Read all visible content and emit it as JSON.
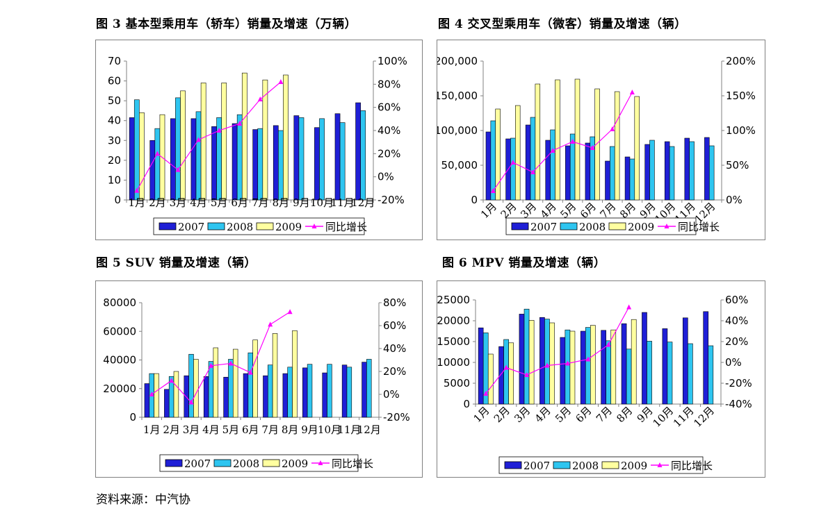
{
  "titles": {
    "fig3": "图 3 基本型乘用车（轿车）销量及增速（万辆）",
    "fig4": "图 4 交叉型乘用车（微客）销量及增速（辆）",
    "fig5": "图 5  SUV 销量及增速（辆）",
    "fig6": "图 6 MPV 销量及增速（辆）"
  },
  "source": "资料来源：中汽协",
  "colors": {
    "s2007": "#1f1fd6",
    "s2008": "#2ec5f0",
    "s2009": "#ffffa0",
    "growth": "#ff00ff",
    "border": "#000000"
  },
  "chart_data": [
    {
      "id": "fig3",
      "type": "bar",
      "categories": [
        "1月",
        "2月",
        "3月",
        "4月",
        "5月",
        "6月",
        "7月",
        "8月",
        "9月",
        "10月",
        "11月",
        "12月"
      ],
      "category_label_rotated": false,
      "series": [
        {
          "name": "2007",
          "values": [
            41.5,
            30,
            41,
            41,
            37,
            38.5,
            35.5,
            37.5,
            42.5,
            36.5,
            43.5,
            49
          ]
        },
        {
          "name": "2008",
          "values": [
            50.5,
            36,
            51.5,
            44.5,
            41.5,
            43,
            36,
            35,
            41.5,
            41,
            39,
            45
          ]
        },
        {
          "name": "2009",
          "values": [
            44,
            43,
            55,
            59,
            59,
            64,
            60.5,
            63,
            null,
            null,
            null,
            null
          ]
        }
      ],
      "line_series": {
        "name": "同比增长",
        "values": [
          -12,
          20,
          6,
          32,
          40,
          46,
          67,
          82,
          null,
          null,
          null,
          null
        ]
      },
      "left_axis": {
        "min": 0,
        "max": 70,
        "ticks": [
          0,
          10,
          20,
          30,
          40,
          50,
          60,
          70
        ],
        "labels": [
          "0",
          "10",
          "20",
          "30",
          "40",
          "50",
          "60",
          "70"
        ]
      },
      "right_axis": {
        "min": -20,
        "max": 100,
        "ticks": [
          -20,
          0,
          20,
          40,
          60,
          80,
          100
        ],
        "labels": [
          "-20%",
          "0%",
          "20%",
          "40%",
          "60%",
          "80%",
          "100%"
        ]
      },
      "legend": [
        "2007",
        "2008",
        "2009",
        "同比增长"
      ],
      "legend_position": "bottom"
    },
    {
      "id": "fig4",
      "type": "bar",
      "categories": [
        "1月",
        "2月",
        "3月",
        "4月",
        "5月",
        "6月",
        "7月",
        "8月",
        "9月",
        "10月",
        "11月",
        "12月"
      ],
      "category_label_rotated": true,
      "series": [
        {
          "name": "2007",
          "values": [
            98000,
            88000,
            108000,
            86000,
            78000,
            82000,
            56000,
            62000,
            80000,
            84000,
            89000,
            90000
          ]
        },
        {
          "name": "2008",
          "values": [
            114000,
            89000,
            119000,
            101000,
            95000,
            91000,
            77000,
            59000,
            86000,
            77000,
            84000,
            78000
          ]
        },
        {
          "name": "2009",
          "values": [
            131000,
            136000,
            167000,
            173000,
            174000,
            160000,
            156000,
            149000,
            null,
            null,
            null,
            null
          ]
        }
      ],
      "line_series": {
        "name": "同比增长",
        "values": [
          13,
          54,
          40,
          71,
          84,
          75,
          102,
          155,
          null,
          null,
          null,
          null
        ]
      },
      "left_axis": {
        "min": 0,
        "max": 200000,
        "ticks": [
          0,
          50000,
          100000,
          150000,
          200000
        ],
        "labels": [
          "0",
          "50,000",
          "100,000",
          "150,000",
          "200,000"
        ]
      },
      "right_axis": {
        "min": 0,
        "max": 200,
        "ticks": [
          0,
          50,
          100,
          150,
          200
        ],
        "labels": [
          "0%",
          "50%",
          "100%",
          "150%",
          "200%"
        ]
      },
      "legend": [
        "2007",
        "2008",
        "2009",
        "同比增长"
      ],
      "legend_position": "bottom"
    },
    {
      "id": "fig5",
      "type": "bar",
      "categories": [
        "1月",
        "2月",
        "3月",
        "4月",
        "5月",
        "6月",
        "7月",
        "8月",
        "9月",
        "10月",
        "11月",
        "12月"
      ],
      "category_label_rotated": false,
      "series": [
        {
          "name": "2007",
          "values": [
            23500,
            19500,
            29000,
            28500,
            28000,
            30500,
            29000,
            30500,
            34500,
            31000,
            36500,
            38500
          ]
        },
        {
          "name": "2008",
          "values": [
            30500,
            28500,
            44000,
            39000,
            40500,
            45000,
            36500,
            35000,
            37000,
            37000,
            35000,
            40500
          ]
        },
        {
          "name": "2009",
          "values": [
            30500,
            32000,
            40500,
            48500,
            47500,
            54000,
            58500,
            60500,
            null,
            null,
            null,
            null
          ]
        }
      ],
      "line_series": {
        "name": "同比增长",
        "values": [
          0,
          12,
          -7,
          25,
          27,
          19,
          61,
          72,
          null,
          null,
          null,
          null
        ]
      },
      "left_axis": {
        "min": 0,
        "max": 80000,
        "ticks": [
          0,
          20000,
          40000,
          60000,
          80000
        ],
        "labels": [
          "0",
          "20000",
          "40000",
          "60000",
          "80000"
        ]
      },
      "right_axis": {
        "min": -20,
        "max": 80,
        "ticks": [
          -20,
          0,
          20,
          40,
          60,
          80
        ],
        "labels": [
          "-20%",
          "0%",
          "20%",
          "40%",
          "60%",
          "80%"
        ]
      },
      "legend": [
        "2007",
        "2008",
        "2009",
        "同比增长"
      ],
      "legend_position": "bottom"
    },
    {
      "id": "fig6",
      "type": "bar",
      "categories": [
        "1月",
        "2月",
        "3月",
        "4月",
        "5月",
        "6月",
        "7月",
        "8月",
        "9月",
        "10月",
        "11月",
        "12月"
      ],
      "category_label_rotated": true,
      "series": [
        {
          "name": "2007",
          "values": [
            18300,
            13800,
            21600,
            20800,
            16000,
            17500,
            17700,
            19300,
            22000,
            18100,
            20700,
            22200
          ]
        },
        {
          "name": "2008",
          "values": [
            17100,
            15500,
            22800,
            20400,
            17800,
            18400,
            15200,
            13200,
            15100,
            14900,
            14500,
            14000
          ]
        },
        {
          "name": "2009",
          "values": [
            12000,
            14700,
            20100,
            19500,
            17500,
            18900,
            17800,
            20300,
            null,
            null,
            null,
            null
          ]
        }
      ],
      "line_series": {
        "name": "同比增长",
        "values": [
          -30,
          -5,
          -12,
          -3,
          -1,
          3,
          17,
          53,
          null,
          null,
          null,
          null
        ]
      },
      "left_axis": {
        "min": 0,
        "max": 25000,
        "ticks": [
          0,
          5000,
          10000,
          15000,
          20000,
          25000
        ],
        "labels": [
          "0",
          "5000",
          "10000",
          "15000",
          "20000",
          "25000"
        ]
      },
      "right_axis": {
        "min": -40,
        "max": 60,
        "ticks": [
          -40,
          -20,
          0,
          20,
          40,
          60
        ],
        "labels": [
          "-40%",
          "-20%",
          "0%",
          "20%",
          "40%",
          "60%"
        ]
      },
      "legend": [
        "2007",
        "2008",
        "2009",
        "同比增长"
      ],
      "legend_position": "bottom"
    }
  ]
}
